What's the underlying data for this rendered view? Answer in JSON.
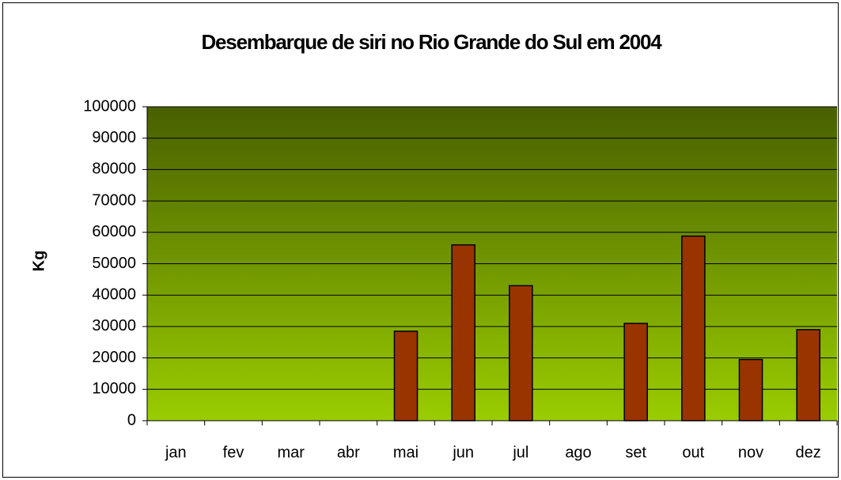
{
  "chart_data": {
    "type": "bar",
    "title": "Desembarque de siri no Rio Grande do Sul em 2004",
    "y_label": "Kg",
    "categories": [
      "jan",
      "fev",
      "mar",
      "abr",
      "mai",
      "jun",
      "jul",
      "ago",
      "set",
      "out",
      "nov",
      "dez"
    ],
    "values": [
      0,
      0,
      0,
      0,
      28500,
      56000,
      43000,
      0,
      31000,
      58800,
      19500,
      29000
    ],
    "color": "#993300",
    "ylim": [
      0,
      100000
    ],
    "yticks": [
      0,
      10000,
      20000,
      30000,
      40000,
      50000,
      60000,
      70000,
      80000,
      90000,
      100000
    ],
    "grid": true
  }
}
